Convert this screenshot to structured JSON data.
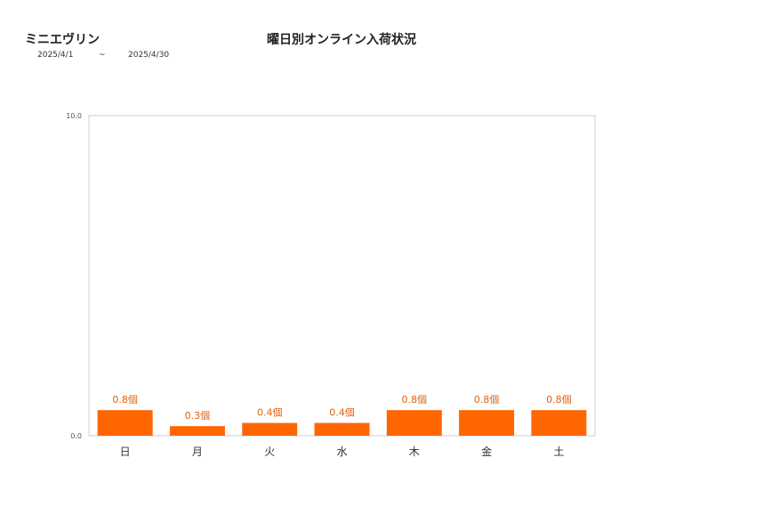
{
  "header": {
    "product_name": "ミニエヴリン",
    "period_start": "2025/4/1",
    "period_sep": "~",
    "period_end": "2025/4/30"
  },
  "colors": {
    "bar": "#ff6600",
    "data_label": "#e06010",
    "axis": "#cccccc"
  },
  "chart_data": {
    "type": "bar",
    "title": "曜日別オンライン入荷状況",
    "categories": [
      "日",
      "月",
      "火",
      "水",
      "木",
      "金",
      "土"
    ],
    "values": [
      0.8,
      0.3,
      0.4,
      0.4,
      0.8,
      0.8,
      0.8
    ],
    "value_labels": [
      "0.8個",
      "0.3個",
      "0.4個",
      "0.4個",
      "0.8個",
      "0.8個",
      "0.8個"
    ],
    "ylim": [
      0,
      10
    ],
    "y_tick_labels": [
      "0.0",
      "10.0"
    ],
    "grid": false,
    "legend": false
  }
}
